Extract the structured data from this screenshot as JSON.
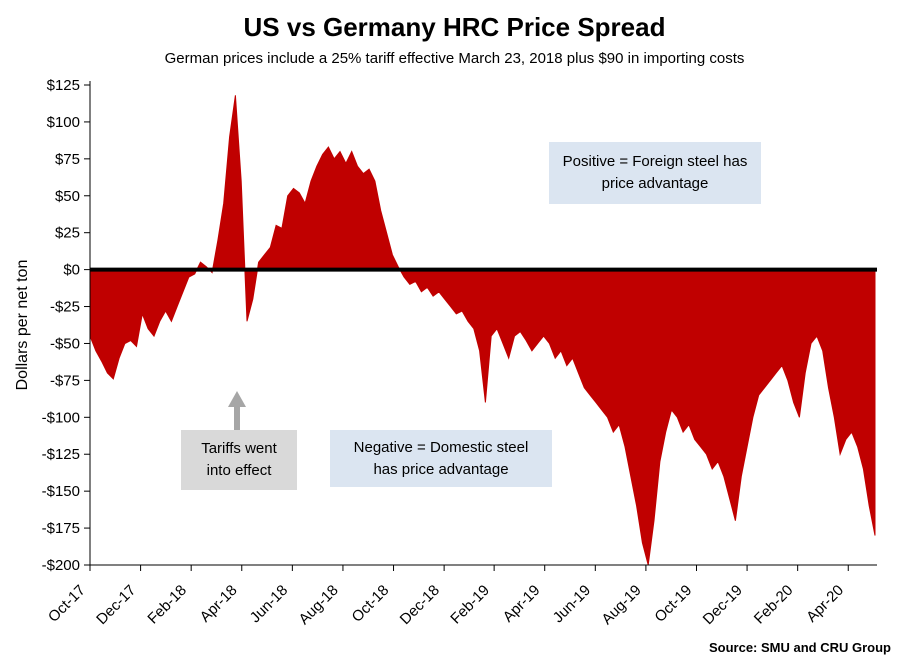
{
  "chart": {
    "title": "US vs Germany HRC Price Spread",
    "subtitle": "German prices include a 25% tariff effective March 23, 2018 plus $90 in importing costs",
    "ylabel": "Dollars per net ton",
    "source": "Source: SMU and CRU Group"
  },
  "annotations": {
    "positive": "Positive = Foreign steel has price advantage",
    "negative": "Negative = Domestic steel has price advantage",
    "tariff": "Tariffs went into effect"
  },
  "chart_data": {
    "type": "area",
    "title": "US vs Germany HRC Price Spread",
    "subtitle": "German prices include a 25% tariff effective March 23, 2018 plus $90 in importing costs",
    "xlabel": "",
    "ylabel": "Dollars per net ton",
    "x_unit": "weekly",
    "x_range": "Oct-2017 to Apr-2020",
    "ylim": [
      -200,
      125
    ],
    "grid": false,
    "legend": "none",
    "fill_color": "#C00000",
    "zero_line_color": "#000000",
    "values": [
      -45,
      -55,
      -62,
      -70,
      -74,
      -60,
      -50,
      -48,
      -52,
      -30,
      -40,
      -45,
      -35,
      -28,
      -35,
      -25,
      -15,
      -5,
      -3,
      5,
      2,
      -2,
      20,
      45,
      90,
      118,
      60,
      -35,
      -20,
      5,
      10,
      15,
      30,
      28,
      50,
      55,
      52,
      45,
      60,
      70,
      78,
      83,
      75,
      80,
      72,
      80,
      70,
      65,
      68,
      60,
      40,
      25,
      10,
      2,
      -5,
      -10,
      -8,
      -15,
      -12,
      -18,
      -15,
      -20,
      -25,
      -30,
      -28,
      -35,
      -40,
      -55,
      -90,
      -45,
      -40,
      -50,
      -60,
      -45,
      -42,
      -48,
      -55,
      -50,
      -45,
      -50,
      -60,
      -55,
      -65,
      -60,
      -70,
      -80,
      -85,
      -90,
      -95,
      -100,
      -110,
      -105,
      -120,
      -140,
      -160,
      -185,
      -200,
      -170,
      -130,
      -110,
      -95,
      -100,
      -110,
      -105,
      -115,
      -120,
      -125,
      -135,
      -130,
      -140,
      -155,
      -170,
      -140,
      -120,
      -100,
      -85,
      -80,
      -75,
      -70,
      -65,
      -75,
      -90,
      -100,
      -70,
      -50,
      -45,
      -55,
      -80,
      -100,
      -125,
      -115,
      -110,
      -120,
      -135,
      -160,
      -180
    ],
    "y_ticks": [
      {
        "value": 125,
        "label": "$125"
      },
      {
        "value": 100,
        "label": "$100"
      },
      {
        "value": 75,
        "label": "$75"
      },
      {
        "value": 50,
        "label": "$50"
      },
      {
        "value": 25,
        "label": "$25"
      },
      {
        "value": 0,
        "label": "$0"
      },
      {
        "value": -25,
        "label": "-$25"
      },
      {
        "value": -50,
        "label": "-$50"
      },
      {
        "value": -75,
        "label": "-$75"
      },
      {
        "value": -100,
        "label": "-$100"
      },
      {
        "value": -125,
        "label": "-$125"
      },
      {
        "value": -150,
        "label": "-$150"
      },
      {
        "value": -175,
        "label": "-$175"
      },
      {
        "value": -200,
        "label": "-$200"
      }
    ],
    "x_ticks": [
      {
        "week": 0,
        "label": "Oct-17"
      },
      {
        "week": 8.7,
        "label": "Dec-17"
      },
      {
        "week": 17.4,
        "label": "Feb-18"
      },
      {
        "week": 26.1,
        "label": "Apr-18"
      },
      {
        "week": 34.8,
        "label": "Jun-18"
      },
      {
        "week": 43.5,
        "label": "Aug-18"
      },
      {
        "week": 52.2,
        "label": "Oct-18"
      },
      {
        "week": 60.9,
        "label": "Dec-18"
      },
      {
        "week": 69.5,
        "label": "Feb-19"
      },
      {
        "week": 78.2,
        "label": "Apr-19"
      },
      {
        "week": 86.9,
        "label": "Jun-19"
      },
      {
        "week": 95.6,
        "label": "Aug-19"
      },
      {
        "week": 104.3,
        "label": "Oct-19"
      },
      {
        "week": 113.0,
        "label": "Dec-19"
      },
      {
        "week": 121.7,
        "label": "Feb-20"
      },
      {
        "week": 130.4,
        "label": "Apr-20"
      }
    ]
  }
}
